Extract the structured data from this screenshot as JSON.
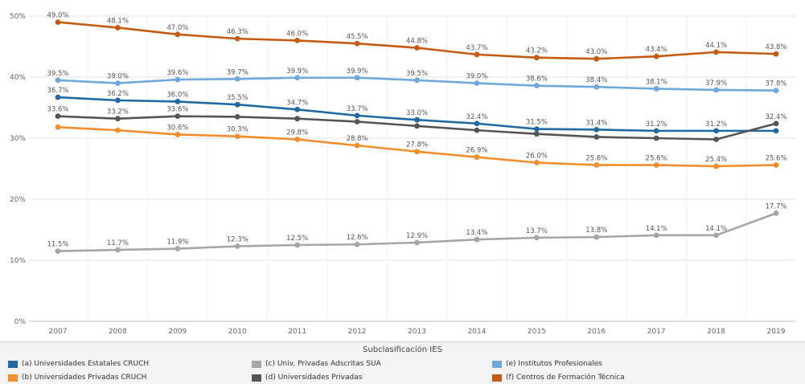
{
  "chart_data": {
    "type": "line",
    "title": "",
    "xlabel": "",
    "ylabel": "",
    "x": [
      "2007",
      "2008",
      "2009",
      "2010",
      "2011",
      "2012",
      "2013",
      "2014",
      "2015",
      "2016",
      "2017",
      "2018",
      "2019"
    ],
    "ylim": [
      0,
      50
    ],
    "yticks": [
      "0%",
      "10%",
      "20%",
      "30%",
      "40%",
      "50%"
    ],
    "grid": true,
    "legend_title": "Subclasificación IES",
    "legend_position": "bottom",
    "series": [
      {
        "name": "(a) Universidades Estatales CRUCH",
        "color": "#1f6aa5",
        "values": [
          36.7,
          36.2,
          36.0,
          35.5,
          34.7,
          33.7,
          33.0,
          32.4,
          31.5,
          31.4,
          31.2,
          31.2,
          31.2
        ],
        "labels": [
          "36.7%",
          "36.2%",
          "36.0%",
          "35.5%",
          "34.7%",
          "33.7%",
          "33.0%",
          "32.4%",
          "31.5%",
          "31.4%",
          "31.2%",
          "31.2%",
          null
        ]
      },
      {
        "name": "(b) Universidades Privadas CRUCH",
        "color": "#f28e2b",
        "values": [
          31.8,
          31.3,
          30.6,
          30.3,
          29.8,
          28.8,
          27.8,
          26.9,
          26.0,
          25.6,
          25.6,
          25.4,
          25.6
        ],
        "labels": [
          null,
          null,
          "30.6%",
          "30.3%",
          "29.8%",
          "28.8%",
          "27.8%",
          "26.9%",
          "26.0%",
          "25.6%",
          "25.6%",
          "25.4%",
          "25.6%"
        ]
      },
      {
        "name": "(c) Univ. Privadas Adscritas SUA",
        "color": "#a6a6a6",
        "values": [
          11.5,
          11.7,
          11.9,
          12.3,
          12.5,
          12.6,
          12.9,
          13.4,
          13.7,
          13.8,
          14.1,
          14.1,
          17.7
        ],
        "labels": [
          "11.5%",
          "11.7%",
          "11.9%",
          "12.3%",
          "12.5%",
          "12.6%",
          "12.9%",
          "13.4%",
          "13.7%",
          "13.8%",
          "14.1%",
          "14.1%",
          "17.7%"
        ]
      },
      {
        "name": "(d) Universidades Privadas",
        "color": "#555555",
        "values": [
          33.6,
          33.2,
          33.6,
          33.5,
          33.2,
          32.7,
          32.0,
          31.3,
          30.7,
          30.2,
          30.0,
          29.8,
          32.4
        ],
        "labels": [
          "33.6%",
          "33.2%",
          "33.6%",
          null,
          null,
          null,
          null,
          null,
          null,
          null,
          null,
          null,
          "32.4%"
        ]
      },
      {
        "name": "(e) Institutos Profesionales",
        "color": "#6fa8dc",
        "values": [
          39.5,
          39.0,
          39.6,
          39.7,
          39.9,
          39.9,
          39.5,
          39.0,
          38.6,
          38.4,
          38.1,
          37.9,
          37.8
        ],
        "labels": [
          "39.5%",
          "39.0%",
          "39.6%",
          "39.7%",
          "39.9%",
          "39.9%",
          "39.5%",
          "39.0%",
          "38.6%",
          "38.4%",
          "38.1%",
          "37.9%",
          "37.8%"
        ]
      },
      {
        "name": "(f) Centros de Formación Técnica",
        "color": "#c55a11",
        "values": [
          49.0,
          48.1,
          47.0,
          46.3,
          46.0,
          45.5,
          44.8,
          43.7,
          43.2,
          43.0,
          43.4,
          44.1,
          43.8
        ],
        "labels": [
          "49.0%",
          "48.1%",
          "47.0%",
          "46.3%",
          "46.0%",
          "45.5%",
          "44.8%",
          "43.7%",
          "43.2%",
          "43.0%",
          "43.4%",
          "44.1%",
          "43.8%"
        ]
      }
    ]
  }
}
